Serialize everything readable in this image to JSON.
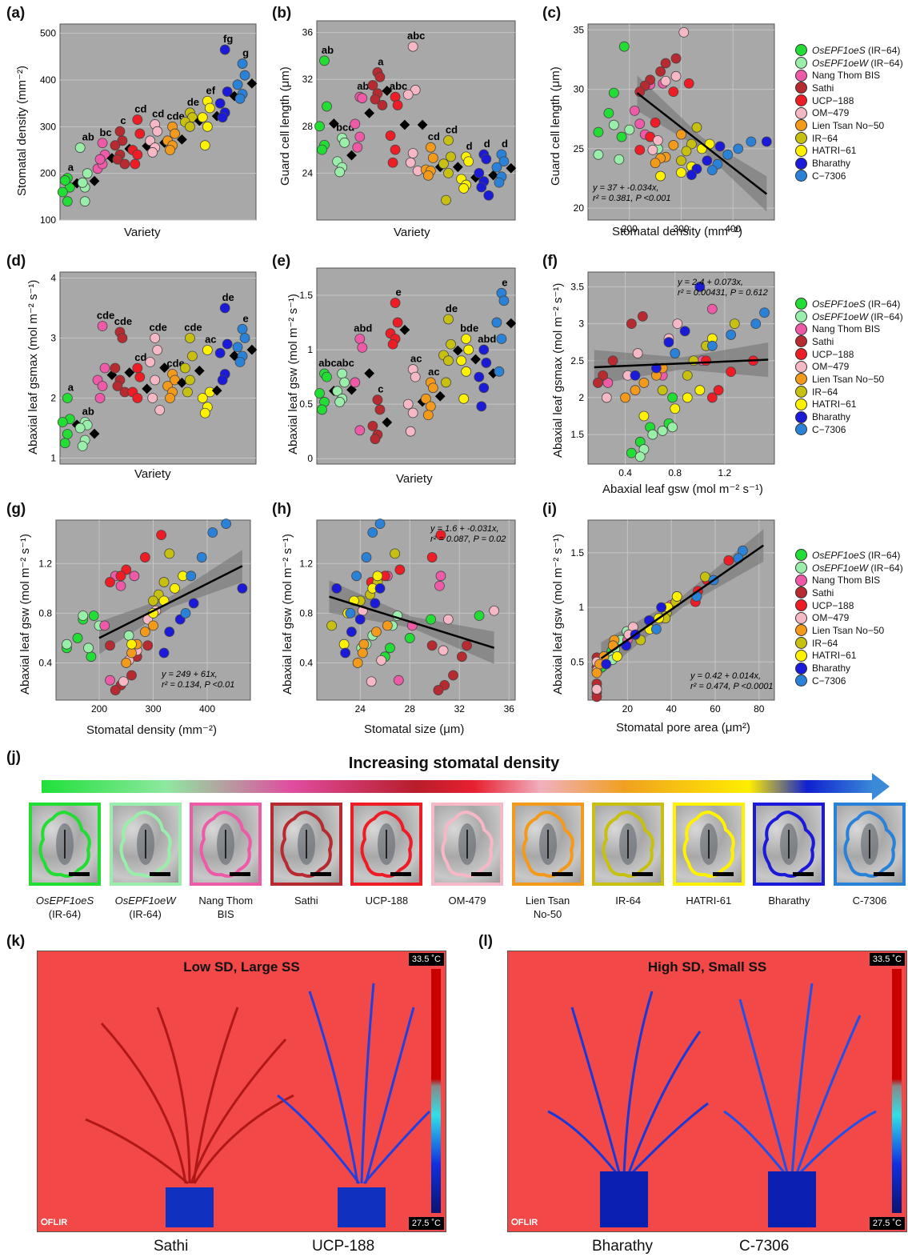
{
  "panels": {
    "a": {
      "letter": "(a)",
      "xlabel": "Variety",
      "ylabel": "Stomatal density (mm⁻²)"
    },
    "b": {
      "letter": "(b)",
      "xlabel": "Variety",
      "ylabel": "Guard cell length (μm)"
    },
    "c": {
      "letter": "(c)",
      "xlabel": "Stomatal density  (mm⁻²)",
      "ylabel": "Guard cell length (μm)",
      "eq1": "y = 37 + -0.034x,",
      "eq2": "r² = 0.381, P <0.001"
    },
    "d": {
      "letter": "(d)",
      "xlabel": "Variety",
      "ylabel": "Abaxial leaf gsmax (mol m⁻² s⁻¹)"
    },
    "e": {
      "letter": "(e)",
      "xlabel": "Variety",
      "ylabel": "Abaxial leaf gsw (mol m⁻² s⁻¹)"
    },
    "f": {
      "letter": "(f)",
      "xlabel": "Abaxial leaf gsw (mol m⁻² s⁻¹)",
      "ylabel": "Abaxial leaf gsmax (mol m⁻² s⁻¹)",
      "eq1": "y = 2.4 + 0.073x,",
      "eq2": "r² = 0.00431, P = 0.612"
    },
    "g": {
      "letter": "(g)",
      "xlabel": "Stomatal density (mm⁻²)",
      "ylabel": "Abaxial leaf gsw (mol m⁻² s⁻¹)",
      "eq1": "y = 249 + 61x,",
      "eq2": "r² = 0.134, P <0.01"
    },
    "h": {
      "letter": "(h)",
      "xlabel": "Stomatal size (μm)",
      "ylabel": "Abaxial leaf gsw (mol m⁻² s⁻¹)",
      "eq1": "y = 1.6 + -0.031x,",
      "eq2": "r² = 0.087, P = 0.02"
    },
    "i": {
      "letter": "(i)",
      "xlabel": "Stomatal pore area  (μm²)",
      "ylabel": "Abaxial leaf gsw (mol m⁻² s⁻¹)",
      "eq1": "y = 0.42 + 0.014x,",
      "eq2": "r² = 0.474, P <0.0001"
    },
    "j": {
      "letter": "(j)",
      "title": "Increasing stomatal density"
    },
    "k": {
      "letter": "(k)",
      "title": "Low SD, Large SS",
      "tmax": "33.5 ˚C",
      "tmin": "27.5 ˚C",
      "flir": "⭘FLIR",
      "left": "Sathi",
      "right": "UCP-188"
    },
    "l": {
      "letter": "(l)",
      "title": "High SD, Small SS",
      "tmax": "33.5 ˚C",
      "tmin": "27.5 ˚C",
      "flir": "⭘FLIR",
      "left": "Bharathy",
      "right": "C-7306"
    }
  },
  "varieties": [
    {
      "name": "OsEPF1oeS",
      "suffix": " (IR−64)",
      "italic": true,
      "color": "#22dd33",
      "label1": "OsEPF1oeS",
      "label2": "(IR-64)"
    },
    {
      "name": "OsEPF1oeW",
      "suffix": " (IR−64)",
      "italic": true,
      "color": "#99eeaa",
      "label1": "OsEPF1oeW",
      "label2": "(IR-64)"
    },
    {
      "name": "Nang Thom BIS",
      "suffix": "",
      "italic": false,
      "color": "#ee5aa8",
      "label1": "Nang Thom",
      "label2": "BIS"
    },
    {
      "name": "Sathi",
      "suffix": "",
      "italic": false,
      "color": "#b72a30",
      "label1": "Sathi",
      "label2": ""
    },
    {
      "name": "UCP−188",
      "suffix": "",
      "italic": false,
      "color": "#ee1c24",
      "label1": "UCP-188",
      "label2": ""
    },
    {
      "name": "OM−479",
      "suffix": "",
      "italic": false,
      "color": "#f6b8c4",
      "label1": "OM-479",
      "label2": ""
    },
    {
      "name": "Lien Tsan No−50",
      "suffix": "",
      "italic": false,
      "color": "#f49a1a",
      "label1": "Lien Tsan",
      "label2": "No-50"
    },
    {
      "name": "IR−64",
      "suffix": "",
      "italic": false,
      "color": "#c8c010",
      "label1": "IR-64",
      "label2": ""
    },
    {
      "name": "HATRI−61",
      "suffix": "",
      "italic": false,
      "color": "#fff200",
      "label1": "HATRI-61",
      "label2": ""
    },
    {
      "name": "Bharathy",
      "suffix": "",
      "italic": false,
      "color": "#1a1ad8",
      "label1": "Bharathy",
      "label2": ""
    },
    {
      "name": "C−7306",
      "suffix": "",
      "italic": false,
      "color": "#2a82d8",
      "label1": "C-7306",
      "label2": ""
    }
  ],
  "chart_data": [
    {
      "id": "a",
      "type": "scatter",
      "title": "",
      "xlabel": "Variety",
      "ylabel": "Stomatal density (mm⁻²)",
      "ylim": [
        100,
        520
      ],
      "yticks": [
        100,
        200,
        300,
        400,
        500
      ],
      "means": [
        178,
        183,
        232,
        252,
        258,
        265,
        272,
        312,
        322,
        365,
        392
      ],
      "letters": [
        "a",
        "ab",
        "bc",
        "c",
        "cd",
        "cd",
        "cde",
        "de",
        "ef",
        "fg",
        "g"
      ],
      "points": [
        [
          190,
          170,
          160,
          140,
          185
        ],
        [
          170,
          200,
          255,
          140,
          180
        ],
        [
          265,
          240,
          210,
          220,
          230
        ],
        [
          290,
          270,
          260,
          240,
          230,
          220
        ],
        [
          315,
          285,
          250,
          240,
          220
        ],
        [
          305,
          290,
          270,
          255,
          245
        ],
        [
          300,
          285,
          270,
          260,
          250
        ],
        [
          330,
          320,
          310,
          300
        ],
        [
          355,
          340,
          320,
          300,
          260
        ],
        [
          465,
          375,
          350,
          330,
          320
        ],
        [
          435,
          410,
          390,
          370,
          360
        ]
      ]
    },
    {
      "id": "b",
      "type": "scatter",
      "title": "",
      "xlabel": "Variety",
      "ylabel": "Guard cell length (μm)",
      "ylim": [
        20,
        37
      ],
      "yticks": [
        24,
        28,
        32,
        36
      ],
      "means": [
        28.2,
        25.5,
        29.1,
        31.0,
        28.1,
        28.1,
        24.5,
        24.5,
        23.6,
        23.8,
        24.4
      ],
      "letters": [
        "ab",
        "bcd",
        "ab",
        "a",
        "abc",
        "abc",
        "cd",
        "cd",
        "d",
        "d",
        "d"
      ],
      "points": [
        [
          33.6,
          29.7,
          28.0,
          26.4,
          26.0
        ],
        [
          27.0,
          26.6,
          25.0,
          24.5,
          24.1
        ],
        [
          30.5,
          30.4,
          28.2,
          27.1,
          26.2
        ],
        [
          32.6,
          32.2,
          31.5,
          30.8,
          30.3,
          29.8
        ],
        [
          30.5,
          29.8,
          27.2,
          26.0,
          24.9
        ],
        [
          34.8,
          31.1,
          30.7,
          25.7,
          24.9,
          24.2
        ],
        [
          26.2,
          25.3,
          24.3,
          24.2,
          23.8
        ],
        [
          26.8,
          25.4,
          24.8,
          24.0,
          21.7
        ],
        [
          25.4,
          25.0,
          23.5,
          23.0,
          22.7
        ],
        [
          25.6,
          25.2,
          24.0,
          23.3,
          22.8,
          22.1
        ],
        [
          25.6,
          25.0,
          24.5,
          23.7,
          23.2
        ]
      ]
    },
    {
      "id": "c",
      "type": "scatter",
      "title": "",
      "xlabel": "Stomatal density  (mm⁻²)",
      "ylabel": "Guard cell length (μm)",
      "xlim": [
        120,
        480
      ],
      "ylim": [
        19,
        35.5
      ],
      "xticks": [
        200,
        300,
        400
      ],
      "yticks": [
        20,
        25,
        30,
        35
      ],
      "fit": {
        "intercept": 37,
        "slope": -0.034,
        "x": [
          215,
          465
        ]
      }
    },
    {
      "id": "d",
      "type": "scatter",
      "title": "",
      "xlabel": "Variety",
      "ylabel": "Abaxial leaf gsmax (mol m⁻² s⁻¹)",
      "ylim": [
        0.9,
        4.1
      ],
      "yticks": [
        1,
        2,
        3,
        4
      ],
      "means": [
        1.55,
        1.4,
        2.38,
        2.42,
        2.15,
        2.5,
        2.25,
        2.45,
        2.12,
        2.7,
        2.8
      ],
      "letters": [
        "a",
        "ab",
        "cde",
        "cde",
        "cd",
        "cde",
        "cde",
        "cde",
        "ac",
        "de",
        "e"
      ],
      "points": [
        [
          2.0,
          1.65,
          1.6,
          1.4,
          1.25
        ],
        [
          1.6,
          1.55,
          1.5,
          1.3,
          1.2
        ],
        [
          3.2,
          2.5,
          2.3,
          2.2,
          2.0
        ],
        [
          3.1,
          3.0,
          2.5,
          2.3,
          2.2,
          2.1
        ],
        [
          2.5,
          2.35,
          2.1,
          2.0
        ],
        [
          3.0,
          2.8,
          2.6,
          2.3,
          2.0,
          1.8
        ],
        [
          2.4,
          2.3,
          2.2,
          2.1,
          2.0
        ],
        [
          3.0,
          2.7,
          2.5,
          2.3,
          2.1
        ],
        [
          2.8,
          2.1,
          2.0,
          1.85,
          1.75
        ],
        [
          3.5,
          2.9,
          2.75,
          2.4,
          2.3
        ],
        [
          3.15,
          3.0,
          2.85,
          2.7,
          2.6
        ]
      ]
    },
    {
      "id": "e",
      "type": "scatter",
      "title": "",
      "xlabel": "Variety",
      "ylabel": "Abaxial leaf gsw (mol m⁻² s⁻¹)",
      "ylim": [
        -0.05,
        1.75
      ],
      "yticks": [
        0.0,
        0.5,
        1.0,
        1.5
      ],
      "means": [
        0.62,
        0.63,
        0.78,
        0.33,
        1.18,
        0.52,
        0.57,
        0.99,
        0.91,
        0.78,
        1.24
      ],
      "letters": [
        "abc",
        "abc",
        "abd",
        "c",
        "e",
        "ac",
        "ac",
        "de",
        "bde",
        "abd",
        "e"
      ],
      "points": [
        [
          0.78,
          0.75,
          0.6,
          0.52,
          0.45
        ],
        [
          0.78,
          0.7,
          0.62,
          0.55,
          0.52
        ],
        [
          1.1,
          1.02,
          0.7,
          0.26
        ],
        [
          0.54,
          0.45,
          0.3,
          0.22,
          0.18
        ],
        [
          1.43,
          1.25,
          1.15,
          1.1,
          1.05
        ],
        [
          0.82,
          0.75,
          0.5,
          0.42,
          0.25
        ],
        [
          0.7,
          0.65,
          0.55,
          0.48,
          0.4
        ],
        [
          1.28,
          1.05,
          0.95,
          0.9,
          0.7
        ],
        [
          1.1,
          1.0,
          0.9,
          0.8,
          0.55
        ],
        [
          1.0,
          0.88,
          0.75,
          0.65,
          0.48
        ],
        [
          1.52,
          1.45,
          1.25,
          1.1,
          0.8
        ]
      ]
    },
    {
      "id": "f",
      "type": "scatter",
      "title": "",
      "xlabel": "Abaxial leaf gsw (mol m⁻² s⁻¹)",
      "ylabel": "Abaxial leaf gsmax (mol m⁻² s⁻¹)",
      "xlim": [
        0.1,
        1.6
      ],
      "ylim": [
        1.1,
        3.7
      ],
      "xticks": [
        0.4,
        0.8,
        1.2
      ],
      "yticks": [
        1.5,
        2.0,
        2.5,
        3.0,
        3.5
      ],
      "fit": {
        "intercept": 2.4,
        "slope": 0.073,
        "x": [
          0.15,
          1.55
        ]
      }
    },
    {
      "id": "g",
      "type": "scatter",
      "title": "",
      "xlabel": "Stomatal density (mm⁻²)",
      "ylabel": "Abaxial leaf gsw (mol m⁻² s⁻¹)",
      "xlim": [
        120,
        480
      ],
      "ylim": [
        0.1,
        1.55
      ],
      "xticks": [
        200,
        300,
        400
      ],
      "yticks": [
        0.4,
        0.8,
        1.2
      ],
      "fit": {
        "intercept": 249,
        "slope": 61,
        "x": [
          200,
          465
        ],
        "y": [
          0.6,
          1.18
        ]
      }
    },
    {
      "id": "h",
      "type": "scatter",
      "title": "",
      "xlabel": "Stomatal size (μm)",
      "ylabel": "Abaxial leaf gsw (mol m⁻² s⁻¹)",
      "xlim": [
        20.5,
        36.5
      ],
      "ylim": [
        0.1,
        1.55
      ],
      "xticks": [
        24,
        28,
        32,
        36
      ],
      "yticks": [
        0.4,
        0.8,
        1.2
      ],
      "fit": {
        "intercept": 1.6,
        "slope": -0.031,
        "x": [
          21.5,
          34.8
        ]
      }
    },
    {
      "id": "i",
      "type": "scatter",
      "title": "",
      "xlabel": "Stomatal pore area  (μm²)",
      "ylabel": "Abaxial leaf gsw (mol m⁻² s⁻¹)",
      "xlim": [
        2,
        87
      ],
      "ylim": [
        0.15,
        1.8
      ],
      "xticks": [
        20,
        40,
        60,
        80
      ],
      "yticks": [
        0.5,
        1.0,
        1.5
      ],
      "fit": {
        "intercept": 0.42,
        "slope": 0.014,
        "x": [
          8,
          82
        ]
      }
    }
  ]
}
